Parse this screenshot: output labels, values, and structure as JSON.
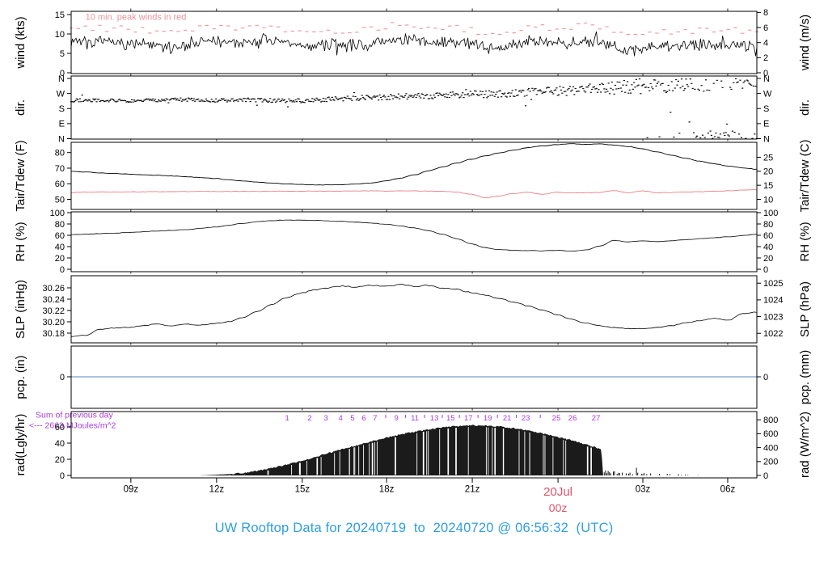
{
  "title": {
    "text": "UW Rooftop Data for 20240719  to  20240720 @ 06:56:32  (UTC)"
  },
  "colors": {
    "line": "#000000",
    "dew": "#e77f89",
    "peak": "#ec939b",
    "date": "#df536b",
    "title": "#2e9ee2",
    "purple": "#a83be0",
    "pcp": "#4f86c6"
  },
  "x_axis": {
    "labels": [
      {
        "t": "09z",
        "h": 2.09
      },
      {
        "t": "12z",
        "h": 5.09
      },
      {
        "t": "15z",
        "h": 8.09
      },
      {
        "t": "18z",
        "h": 11.04
      },
      {
        "t": "21z",
        "h": 14.04
      },
      {
        "t": "03z",
        "h": 20.01
      },
      {
        "t": "06z",
        "h": 22.98
      }
    ],
    "date": {
      "line1": "20Jul",
      "line2": "00z",
      "h": 17.04
    }
  },
  "chart_data": {
    "type": "line",
    "noise_seed": 7,
    "hours_span": 24,
    "panels": [
      {
        "id": "wind",
        "label_left": "wind (kts)",
        "label_right": "wind (m/s)",
        "note": "10 min. peak winds in red",
        "ticks_left": [
          0,
          5,
          10,
          15
        ],
        "ticks_right": [
          0,
          2,
          4,
          6,
          8
        ],
        "ylim_kts": [
          0,
          16
        ],
        "mean_kts": [
          7.4,
          7.6,
          7.1,
          7.7,
          7.4,
          7.8,
          7.3,
          7.6,
          7.9,
          7.3,
          7.7,
          7.4,
          7.8,
          8.0,
          7.5,
          7.2,
          7.7,
          7.4,
          7.8,
          7.3,
          6.9,
          6.6,
          7.1,
          6.4,
          6.6
        ],
        "gust_offset_kts": 2.9
      },
      {
        "id": "dir",
        "label_left": "dir.",
        "label_right": "dir.",
        "ticks_left": [
          {
            "v": 360,
            "t": "N"
          },
          {
            "v": 270,
            "t": "W"
          },
          {
            "v": 180,
            "t": "S"
          },
          {
            "v": 90,
            "t": "E"
          },
          {
            "v": 0,
            "t": "N"
          }
        ],
        "ticks_right": [
          {
            "v": 360,
            "t": "N"
          },
          {
            "v": 270,
            "t": "W"
          },
          {
            "v": 180,
            "t": "S"
          },
          {
            "v": 90,
            "t": "E"
          },
          {
            "v": 0,
            "t": "N"
          }
        ],
        "base_deg": [
          228,
          231,
          226,
          230,
          234,
          228,
          232,
          229,
          226,
          236,
          242,
          248,
          254,
          260,
          268,
          266,
          276,
          284,
          294,
          304,
          316,
          330,
          344,
          350,
          356
        ],
        "spread_deg": [
          10,
          10,
          10,
          10,
          10,
          11,
          12,
          12,
          13,
          14,
          15,
          16,
          18,
          20,
          22,
          24,
          26,
          28,
          32,
          40,
          48,
          58,
          62,
          58,
          52
        ]
      },
      {
        "id": "tair",
        "label_left": "Tair/Tdew (F)",
        "label_right": "Tair/Tdew (C)",
        "ticks_left": [
          50,
          60,
          70,
          80
        ],
        "ticks_right": [
          10,
          15,
          20,
          25
        ],
        "step_hours": 0.5,
        "tair_f": [
          68,
          67.5,
          67,
          66.6,
          66.2,
          65.8,
          65.4,
          65,
          64.5,
          64,
          63.4,
          62.6,
          61.8,
          61,
          60.4,
          59.9,
          59.6,
          59.3,
          59.2,
          59.4,
          59.8,
          60.6,
          61.8,
          63.5,
          65.7,
          68.2,
          70.8,
          73.3,
          75.7,
          77.9,
          79.9,
          81.6,
          83.2,
          84.3,
          85.1,
          85.7,
          85.2,
          85.6,
          84.9,
          83.9,
          82.4,
          80.4,
          78.4,
          76.4,
          74.5,
          72.8,
          71.4,
          70.2,
          69.3
        ],
        "tdew_f": [
          54.3,
          54.6,
          54.7,
          54.7,
          54.8,
          54.8,
          54.9,
          54.9,
          55,
          55,
          55,
          55.1,
          55.1,
          55.1,
          55.2,
          55.2,
          55.2,
          55.3,
          55.3,
          55.3,
          55.4,
          55.4,
          55.3,
          55.4,
          55.4,
          55.3,
          55.2,
          54.6,
          53.2,
          51,
          52.2,
          53.8,
          54.5,
          53.2,
          54.6,
          54,
          54.2,
          54.4,
          55.6,
          54.2,
          55.4,
          54.2,
          54.4,
          54.7,
          54.9,
          55.2,
          55.5,
          55.9,
          56.4
        ]
      },
      {
        "id": "rh",
        "label_left": "RH (%)",
        "label_right": "RH (%)",
        "ticks_left": [
          0,
          20,
          40,
          60,
          80,
          100
        ],
        "ticks_right": [
          0,
          20,
          40,
          60,
          80,
          100
        ],
        "step_hours": 0.5,
        "rh_pct": [
          61,
          62,
          63,
          64,
          65,
          66.2,
          67.4,
          68.6,
          70,
          72,
          74.5,
          77.5,
          81,
          84,
          86,
          87,
          86.8,
          86.2,
          85.4,
          84.4,
          83.2,
          81.6,
          79.6,
          76.8,
          73,
          68,
          62,
          54,
          45,
          38,
          34.5,
          33.5,
          33,
          32.5,
          33.5,
          32,
          34,
          41,
          51,
          48.5,
          50,
          49,
          50.5,
          52,
          54,
          55.8,
          57.5,
          59.5,
          61.5
        ]
      },
      {
        "id": "slp",
        "label_left": "SLP (inHg)",
        "label_right": "SLP (hPa)",
        "ticks_left": [
          "30.18",
          "30.20",
          "30.22",
          "30.24",
          "30.26"
        ],
        "ticks_right": [
          1022,
          1023,
          1024,
          1025
        ],
        "step_hours": 0.5,
        "slp_inhg": [
          30.174,
          30.176,
          30.187,
          30.189,
          30.19,
          30.193,
          30.196,
          30.193,
          30.196,
          30.194,
          30.197,
          30.2,
          30.207,
          30.218,
          30.23,
          30.242,
          30.25,
          30.256,
          30.26,
          30.263,
          30.261,
          30.265,
          30.262,
          30.266,
          30.263,
          30.265,
          30.26,
          30.257,
          30.252,
          30.247,
          30.241,
          30.235,
          30.228,
          30.221,
          30.213,
          30.205,
          30.198,
          30.193,
          30.19,
          30.188,
          30.188,
          30.19,
          30.193,
          30.198,
          30.202,
          30.206,
          30.203,
          30.214,
          30.217
        ]
      },
      {
        "id": "pcp",
        "label_left": "pcp. (in)",
        "label_right": "pcp. (mm)",
        "ticks_left": [
          0
        ],
        "ticks_right": [
          0
        ],
        "pcp_in": 0
      },
      {
        "id": "rad",
        "label_left": "rad(Lgly/hr)",
        "label_right": "rad (W/m^2)",
        "ticks_left": [
          0,
          20,
          40,
          60
        ],
        "ticks_right": [
          0,
          200,
          400,
          600,
          800
        ],
        "sum_note_line1": "Sum of previous day",
        "sum_note_line2": "<--- 2663 MJoules/m^2",
        "envelope_lgly": [
          [
            4.5,
            0
          ],
          [
            5,
            0.8
          ],
          [
            5.5,
            1.6
          ],
          [
            6,
            3
          ],
          [
            6.5,
            5.5
          ],
          [
            7,
            9
          ],
          [
            7.5,
            13
          ],
          [
            8,
            17.5
          ],
          [
            8.5,
            22.5
          ],
          [
            9,
            27.5
          ],
          [
            9.5,
            32.5
          ],
          [
            10,
            37.5
          ],
          [
            10.5,
            42
          ],
          [
            11,
            46.5
          ],
          [
            11.5,
            50.5
          ],
          [
            12,
            54
          ],
          [
            12.5,
            57
          ],
          [
            13,
            59.5
          ],
          [
            13.5,
            61
          ],
          [
            14,
            62
          ],
          [
            14.5,
            61.8
          ],
          [
            15,
            60.5
          ],
          [
            15.5,
            58.5
          ],
          [
            16,
            55.5
          ],
          [
            16.5,
            52
          ],
          [
            17,
            48
          ],
          [
            17.5,
            43.5
          ],
          [
            18,
            38.5
          ],
          [
            18.3,
            35.5
          ],
          [
            18.56,
            31.5
          ],
          [
            18.62,
            0
          ]
        ],
        "mj_markers": [
          [
            1,
            7.56
          ],
          [
            2,
            8.35
          ],
          [
            3,
            8.92
          ],
          [
            4,
            9.43
          ],
          [
            5,
            9.85
          ],
          [
            6,
            10.25
          ],
          [
            7,
            10.64
          ],
          [
            9,
            11.38
          ],
          [
            11,
            12.03
          ],
          [
            13,
            12.71
          ],
          [
            15,
            13.28
          ],
          [
            17,
            13.9
          ],
          [
            19,
            14.58
          ],
          [
            21,
            15.26
          ],
          [
            23,
            15.91
          ],
          [
            25,
            16.98
          ],
          [
            26,
            17.55
          ],
          [
            27,
            18.37
          ]
        ],
        "mj_minor_ticks": [
          11.01,
          11.7,
          12.37,
          12.99,
          13.59,
          14.24,
          14.92,
          15.58,
          16.42
        ]
      }
    ]
  }
}
